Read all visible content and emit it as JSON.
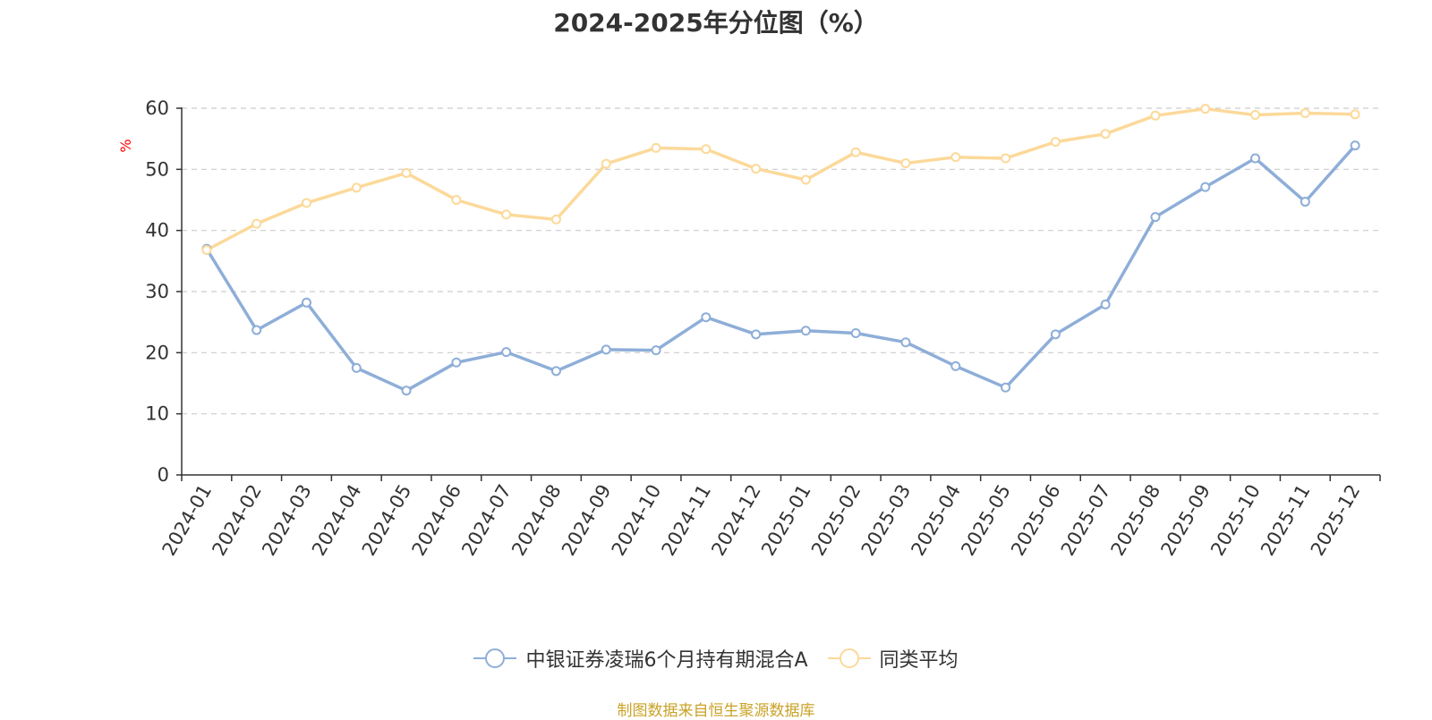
{
  "chart_data": {
    "type": "line",
    "title": "2024-2025年分位图（%）",
    "ylabel": "%",
    "xlabel": "",
    "ylim": [
      0,
      60
    ],
    "yticks": [
      0,
      10,
      20,
      30,
      40,
      50,
      60
    ],
    "grid": true,
    "legend_position": "bottom",
    "categories": [
      "2024-01",
      "2024-02",
      "2024-03",
      "2024-04",
      "2024-05",
      "2024-06",
      "2024-07",
      "2024-08",
      "2024-09",
      "2024-10",
      "2024-11",
      "2024-12",
      "2025-01",
      "2025-02",
      "2025-03",
      "2025-04",
      "2025-05",
      "2025-06",
      "2025-07",
      "2025-08",
      "2025-09",
      "2025-10",
      "2025-11",
      "2025-12"
    ],
    "series": [
      {
        "name": "中银证券凌瑞6个月持有期混合A",
        "color": "#8eaed8",
        "values": [
          37.0,
          23.7,
          28.2,
          17.5,
          13.8,
          18.4,
          20.1,
          17.0,
          20.5,
          20.4,
          25.8,
          23.0,
          23.6,
          23.2,
          21.7,
          17.8,
          14.3,
          23.0,
          27.9,
          42.2,
          47.1,
          51.8,
          44.7,
          53.9
        ]
      },
      {
        "name": "同类平均",
        "color": "#fcd99a",
        "values": [
          36.8,
          41.1,
          44.5,
          47.0,
          49.4,
          45.0,
          42.6,
          41.8,
          50.9,
          53.5,
          53.3,
          50.1,
          48.3,
          52.8,
          51.0,
          52.0,
          51.8,
          54.5,
          55.8,
          58.8,
          59.9,
          58.9,
          59.2,
          59.0
        ]
      }
    ]
  },
  "footer": {
    "source": "制图数据来自恒生聚源数据库"
  }
}
